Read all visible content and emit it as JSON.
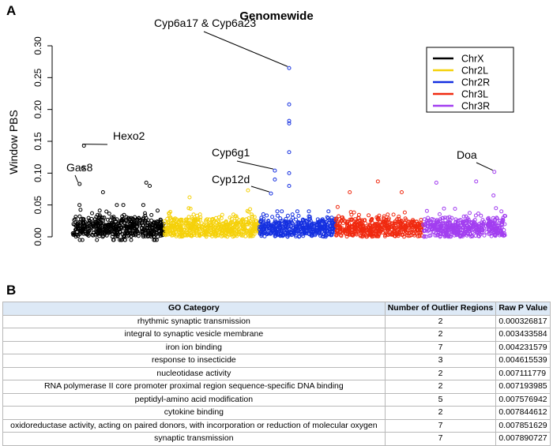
{
  "panel_a_letter": "A",
  "panel_b_letter": "B",
  "chart_data": {
    "type": "scatter",
    "title": "Genomewide",
    "xlabel": "",
    "ylabel": "Window PBS",
    "ylim": [
      0,
      0.3
    ],
    "yticks": [
      "0.00",
      "0.05",
      "0.10",
      "0.15",
      "0.20",
      "0.25",
      "0.30"
    ],
    "xlim": [
      0,
      1000
    ],
    "legend": {
      "placement": "top-right",
      "entries": [
        {
          "name": "ChrX",
          "color": "#000000"
        },
        {
          "name": "Chr2L",
          "color": "#f5d10a"
        },
        {
          "name": "Chr2R",
          "color": "#1530e0"
        },
        {
          "name": "Chr3L",
          "color": "#f02a10"
        },
        {
          "name": "Chr3R",
          "color": "#a23ef0"
        }
      ]
    },
    "chromosomes": [
      {
        "name": "ChrX",
        "start": 0,
        "end": 212,
        "typical_max": 0.05
      },
      {
        "name": "Chr2L",
        "start": 212,
        "end": 431,
        "typical_max": 0.045
      },
      {
        "name": "Chr2R",
        "start": 431,
        "end": 608,
        "typical_max": 0.04
      },
      {
        "name": "Chr3L",
        "start": 608,
        "end": 809,
        "typical_max": 0.05
      },
      {
        "name": "Chr3R",
        "start": 809,
        "end": 1000,
        "typical_max": 0.045
      }
    ],
    "outliers": [
      {
        "chr": "ChrX",
        "x": 16,
        "y": 0.083
      },
      {
        "chr": "ChrX",
        "x": 26,
        "y": 0.143
      },
      {
        "chr": "ChrX",
        "x": 24,
        "y": 0.108
      },
      {
        "chr": "ChrX",
        "x": 170,
        "y": 0.085
      },
      {
        "chr": "ChrX",
        "x": 178,
        "y": 0.08
      },
      {
        "chr": "ChrX",
        "x": 70,
        "y": 0.07
      },
      {
        "chr": "Chr2L",
        "x": 270,
        "y": 0.062
      },
      {
        "chr": "Chr2L",
        "x": 405,
        "y": 0.073
      },
      {
        "chr": "Chr2R",
        "x": 458,
        "y": 0.068
      },
      {
        "chr": "Chr2R",
        "x": 467,
        "y": 0.104
      },
      {
        "chr": "Chr2R",
        "x": 467,
        "y": 0.09
      },
      {
        "chr": "Chr2R",
        "x": 500,
        "y": 0.265
      },
      {
        "chr": "Chr2R",
        "x": 500,
        "y": 0.208
      },
      {
        "chr": "Chr2R",
        "x": 500,
        "y": 0.182
      },
      {
        "chr": "Chr2R",
        "x": 500,
        "y": 0.178
      },
      {
        "chr": "Chr2R",
        "x": 500,
        "y": 0.133
      },
      {
        "chr": "Chr2R",
        "x": 500,
        "y": 0.1
      },
      {
        "chr": "Chr2R",
        "x": 500,
        "y": 0.08
      },
      {
        "chr": "Chr3L",
        "x": 640,
        "y": 0.07
      },
      {
        "chr": "Chr3L",
        "x": 705,
        "y": 0.087
      },
      {
        "chr": "Chr3L",
        "x": 760,
        "y": 0.07
      },
      {
        "chr": "Chr3R",
        "x": 840,
        "y": 0.085
      },
      {
        "chr": "Chr3R",
        "x": 932,
        "y": 0.087
      },
      {
        "chr": "Chr3R",
        "x": 974,
        "y": 0.102
      },
      {
        "chr": "Chr3R",
        "x": 972,
        "y": 0.065
      }
    ],
    "annotations": [
      {
        "text": "Gas8",
        "x": 16,
        "y": 0.083
      },
      {
        "text": "Hexo2",
        "x": 26,
        "y": 0.143
      },
      {
        "text": "Cyp6a17 & Cyp6a23",
        "x": 500,
        "y": 0.265
      },
      {
        "text": "Cyp6g1",
        "x": 467,
        "y": 0.104
      },
      {
        "text": "Cyp12d",
        "x": 458,
        "y": 0.068
      },
      {
        "text": "Doa",
        "x": 974,
        "y": 0.102
      }
    ]
  },
  "table": {
    "headers": [
      "GO Category",
      "Number of Outlier Regions",
      "Raw P Value"
    ],
    "rows": [
      [
        "rhythmic synaptic transmission",
        "2",
        "0.000326817"
      ],
      [
        "integral to synaptic vesicle membrane",
        "2",
        "0.003433584"
      ],
      [
        "iron ion binding",
        "7",
        "0.004231579"
      ],
      [
        "response to insecticide",
        "3",
        "0.004615539"
      ],
      [
        "nucleotidase activity",
        "2",
        "0.007111779"
      ],
      [
        "RNA polymerase II core promoter proximal region sequence-specific DNA binding",
        "2",
        "0.007193985"
      ],
      [
        "peptidyl-amino acid modification",
        "5",
        "0.007576942"
      ],
      [
        "cytokine binding",
        "2",
        "0.007844612"
      ],
      [
        "oxidoreductase activity, acting on paired donors, with incorporation or reduction of molecular oxygen",
        "7",
        "0.007851629"
      ],
      [
        "synaptic transmission",
        "7",
        "0.007890727"
      ]
    ]
  }
}
